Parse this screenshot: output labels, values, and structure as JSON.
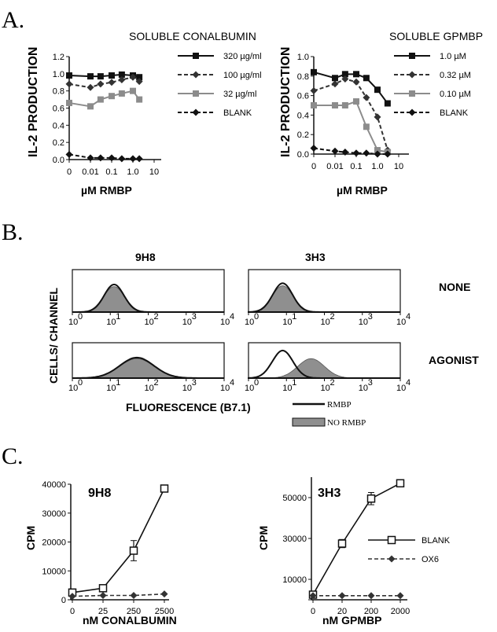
{
  "panel_labels": [
    "A.",
    "B.",
    "C."
  ],
  "chart_data": [
    {
      "id": "A-left",
      "type": "line",
      "title": "SOLUBLE CONALBUMIN",
      "ylabel": "IL-2 PRODUCTION",
      "xlabel": "µM RMBP",
      "x_tick_labels": [
        "0",
        "0.01",
        "0.1",
        "1.0",
        "10"
      ],
      "y_tick_labels": [
        "0.0",
        "0.2",
        "0.4",
        "0.6",
        "0.8",
        "1.0",
        "1.2"
      ],
      "ylim": [
        0,
        1.2
      ],
      "legend_position": "top-right",
      "series": [
        {
          "name": "320 µg/ml",
          "style": "solid",
          "color": "#111111",
          "marker": "square",
          "x": [
            0,
            0.01,
            0.03,
            0.1,
            0.3,
            1.0,
            2.0
          ],
          "y": [
            0.98,
            0.97,
            0.97,
            0.98,
            0.99,
            0.98,
            0.96
          ]
        },
        {
          "name": "100 µg/ml",
          "style": "dashed",
          "color": "#333333",
          "marker": "diamond",
          "x": [
            0,
            0.01,
            0.03,
            0.1,
            0.3,
            1.0,
            2.0
          ],
          "y": [
            0.88,
            0.84,
            0.88,
            0.9,
            0.93,
            0.96,
            0.91
          ]
        },
        {
          "name": "32 µg/ml",
          "style": "solid",
          "color": "#8c8c8c",
          "marker": "square",
          "x": [
            0,
            0.01,
            0.03,
            0.1,
            0.3,
            1.0,
            2.0
          ],
          "y": [
            0.66,
            0.62,
            0.7,
            0.74,
            0.77,
            0.8,
            0.7
          ]
        },
        {
          "name": "BLANK",
          "style": "dashed",
          "color": "#111111",
          "marker": "diamond",
          "x": [
            0,
            0.01,
            0.03,
            0.1,
            0.3,
            1.0,
            2.0
          ],
          "y": [
            0.06,
            0.02,
            0.02,
            0.02,
            0.01,
            0.01,
            0.01
          ]
        }
      ]
    },
    {
      "id": "A-right",
      "type": "line",
      "title": "SOLUBLE GPMBP",
      "ylabel": "IL-2 PRODUCTION",
      "xlabel": "µM RMBP",
      "x_tick_labels": [
        "0",
        "0.01",
        "0.1",
        "1.0",
        "10"
      ],
      "y_tick_labels": [
        "0.0",
        "0.2",
        "0.4",
        "0.6",
        "0.8",
        "1.0"
      ],
      "ylim": [
        0,
        1.0
      ],
      "legend_position": "top-right",
      "series": [
        {
          "name": "1.0 µM",
          "style": "solid",
          "color": "#111111",
          "marker": "square",
          "x": [
            0,
            0.01,
            0.03,
            0.1,
            0.3,
            1.0,
            3.0
          ],
          "y": [
            0.84,
            0.78,
            0.82,
            0.82,
            0.78,
            0.66,
            0.52
          ]
        },
        {
          "name": "0.32 µM",
          "style": "dashed",
          "color": "#333333",
          "marker": "diamond",
          "x": [
            0,
            0.01,
            0.03,
            0.1,
            0.3,
            1.0,
            3.0
          ],
          "y": [
            0.65,
            0.72,
            0.77,
            0.74,
            0.58,
            0.38,
            0.04
          ]
        },
        {
          "name": "0.10 µM",
          "style": "solid",
          "color": "#8c8c8c",
          "marker": "square",
          "x": [
            0,
            0.01,
            0.03,
            0.1,
            0.3,
            1.0,
            3.0
          ],
          "y": [
            0.5,
            0.5,
            0.5,
            0.54,
            0.28,
            0.04,
            0.02
          ]
        },
        {
          "name": "BLANK",
          "style": "dashed",
          "color": "#111111",
          "marker": "diamond",
          "x": [
            0,
            0.01,
            0.03,
            0.1,
            0.3,
            1.0,
            3.0
          ],
          "y": [
            0.06,
            0.03,
            0.02,
            0.01,
            0.01,
            0.0,
            0.0
          ]
        }
      ]
    },
    {
      "id": "B",
      "type": "area",
      "ylabel": "CELLS/ CHANNEL",
      "xlabel": "FLUORESCENCE (B7.1)",
      "column_titles": [
        "9H8",
        "3H3"
      ],
      "row_labels": [
        "NONE",
        "AGONIST"
      ],
      "x_tick_labels": [
        "10",
        "10",
        "10",
        "10",
        "10"
      ],
      "x_tick_exponents": [
        "0",
        "1",
        "2",
        "3",
        "4"
      ],
      "legend": [
        "RMBP",
        "NO RMBP"
      ],
      "x_scale": "log",
      "histograms": [
        {
          "column": "9H8",
          "row": "NONE",
          "rmbp_peak_log": 1.1,
          "rmbp_width": 0.26,
          "rmbp_height": 0.65,
          "no_rmbp_peak_log": 1.1,
          "no_rmbp_width": 0.28,
          "no_rmbp_height": 0.6
        },
        {
          "column": "3H3",
          "row": "NONE",
          "rmbp_peak_log": 0.9,
          "rmbp_width": 0.26,
          "rmbp_height": 0.68,
          "no_rmbp_peak_log": 0.9,
          "no_rmbp_width": 0.28,
          "no_rmbp_height": 0.62
        },
        {
          "column": "9H8",
          "row": "AGONIST",
          "rmbp_peak_log": 1.7,
          "rmbp_width": 0.45,
          "rmbp_height": 0.58,
          "no_rmbp_peak_log": 1.7,
          "no_rmbp_width": 0.45,
          "no_rmbp_height": 0.55
        },
        {
          "column": "3H3",
          "row": "AGONIST",
          "rmbp_peak_log": 0.9,
          "rmbp_width": 0.27,
          "rmbp_height": 0.78,
          "no_rmbp_peak_log": 1.65,
          "no_rmbp_width": 0.35,
          "no_rmbp_height": 0.55
        }
      ]
    },
    {
      "id": "C-left",
      "type": "line",
      "title": "9H8",
      "ylabel": "CPM",
      "xlabel": "nM  CONALBUMIN",
      "categories": [
        "0",
        "25",
        "250",
        "2500"
      ],
      "y_tick_labels": [
        "0",
        "10000",
        "20000",
        "30000",
        "40000"
      ],
      "ylim": [
        0,
        40000
      ],
      "series": [
        {
          "name": "BLANK",
          "style": "solid",
          "color": "#111111",
          "marker": "open-square",
          "values": [
            2500,
            4000,
            17000,
            38500
          ],
          "errors": [
            0,
            0,
            3500,
            0
          ]
        },
        {
          "name": "OX6",
          "style": "dashed",
          "color": "#333333",
          "marker": "diamond",
          "values": [
            1200,
            1500,
            1500,
            2000
          ]
        }
      ]
    },
    {
      "id": "C-right",
      "type": "line",
      "title": "3H3",
      "ylabel": "CPM",
      "xlabel": "nM GPMBP",
      "categories": [
        "0",
        "20",
        "200",
        "2000"
      ],
      "y_tick_labels": [
        "",
        "10000",
        "30000",
        "50000"
      ],
      "ylim": [
        0,
        60000
      ],
      "legend_position": "right",
      "series": [
        {
          "name": "BLANK",
          "style": "solid",
          "color": "#111111",
          "marker": "open-square",
          "values": [
            2500,
            27500,
            49500,
            57000
          ],
          "errors": [
            0,
            2000,
            3000,
            1500
          ]
        },
        {
          "name": "OX6",
          "style": "dashed",
          "color": "#333333",
          "marker": "diamond",
          "values": [
            2000,
            2000,
            2000,
            2000
          ]
        }
      ]
    }
  ]
}
